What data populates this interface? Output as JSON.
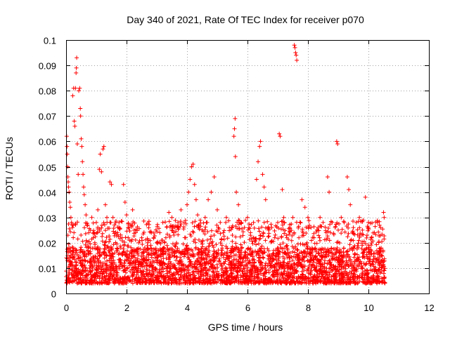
{
  "chart_data": {
    "type": "scatter",
    "title": "Day 340 of 2021, Rate Of TEC Index for receiver p070",
    "xlabel": "GPS time / hours",
    "ylabel": "ROTI / TECUs",
    "xlim": [
      0,
      12
    ],
    "ylim": [
      0,
      0.1
    ],
    "xticks": [
      0,
      2,
      4,
      6,
      8,
      10,
      12
    ],
    "xtick_labels": [
      "0",
      "2",
      "4",
      "6",
      "8",
      "10",
      "12"
    ],
    "yticks": [
      0,
      0.01,
      0.02,
      0.03,
      0.04,
      0.05,
      0.06,
      0.07,
      0.08,
      0.09,
      0.1
    ],
    "ytick_labels": [
      "0",
      "0.01",
      "0.02",
      "0.03",
      "0.04",
      "0.05",
      "0.06",
      "0.07",
      "0.08",
      "0.09",
      "0.1"
    ],
    "grid": true,
    "marker": "+",
    "color": "#ff0000",
    "baseline_band": {
      "x_range": [
        0,
        10.55
      ],
      "y_range": [
        0.004,
        0.018
      ]
    },
    "series": [
      {
        "name": "ROTI",
        "points": [
          [
            0.02,
            0.062
          ],
          [
            0.03,
            0.058
          ],
          [
            0.04,
            0.055
          ],
          [
            0.05,
            0.05
          ],
          [
            0.06,
            0.046
          ],
          [
            0.07,
            0.044
          ],
          [
            0.08,
            0.042
          ],
          [
            0.1,
            0.04
          ],
          [
            0.12,
            0.036
          ],
          [
            0.14,
            0.034
          ],
          [
            0.16,
            0.03
          ],
          [
            0.18,
            0.028
          ],
          [
            0.2,
            0.027
          ],
          [
            0.22,
            0.078
          ],
          [
            0.25,
            0.081
          ],
          [
            0.27,
            0.068
          ],
          [
            0.29,
            0.066
          ],
          [
            0.31,
            0.081
          ],
          [
            0.33,
            0.087
          ],
          [
            0.34,
            0.089
          ],
          [
            0.35,
            0.093
          ],
          [
            0.37,
            0.059
          ],
          [
            0.4,
            0.047
          ],
          [
            0.42,
            0.08
          ],
          [
            0.45,
            0.081
          ],
          [
            0.47,
            0.073
          ],
          [
            0.48,
            0.07
          ],
          [
            0.5,
            0.061
          ],
          [
            0.52,
            0.058
          ],
          [
            0.54,
            0.052
          ],
          [
            0.56,
            0.047
          ],
          [
            0.58,
            0.042
          ],
          [
            0.6,
            0.039
          ],
          [
            0.63,
            0.035
          ],
          [
            0.66,
            0.031
          ],
          [
            0.7,
            0.027
          ],
          [
            0.75,
            0.024
          ],
          [
            0.8,
            0.025
          ],
          [
            0.85,
            0.03
          ],
          [
            0.9,
            0.022
          ],
          [
            0.95,
            0.02
          ],
          [
            1.0,
            0.028
          ],
          [
            1.05,
            0.033
          ],
          [
            1.1,
            0.049
          ],
          [
            1.13,
            0.055
          ],
          [
            1.17,
            0.048
          ],
          [
            1.22,
            0.057
          ],
          [
            1.25,
            0.058
          ],
          [
            1.3,
            0.035
          ],
          [
            1.35,
            0.03
          ],
          [
            1.45,
            0.044
          ],
          [
            1.5,
            0.043
          ],
          [
            1.55,
            0.03
          ],
          [
            1.6,
            0.027
          ],
          [
            1.7,
            0.024
          ],
          [
            1.75,
            0.028
          ],
          [
            1.85,
            0.022
          ],
          [
            1.9,
            0.043
          ],
          [
            1.95,
            0.036
          ],
          [
            2.0,
            0.031
          ],
          [
            2.05,
            0.026
          ],
          [
            2.1,
            0.021
          ],
          [
            2.2,
            0.033
          ],
          [
            2.3,
            0.024
          ],
          [
            2.4,
            0.02
          ],
          [
            2.5,
            0.022
          ],
          [
            2.6,
            0.018
          ],
          [
            2.7,
            0.02
          ],
          [
            2.8,
            0.019
          ],
          [
            2.9,
            0.022
          ],
          [
            3.0,
            0.02
          ],
          [
            3.1,
            0.024
          ],
          [
            3.2,
            0.028
          ],
          [
            3.3,
            0.022
          ],
          [
            3.4,
            0.032
          ],
          [
            3.5,
            0.03
          ],
          [
            3.6,
            0.026
          ],
          [
            3.7,
            0.028
          ],
          [
            3.8,
            0.033
          ],
          [
            3.9,
            0.028
          ],
          [
            4.0,
            0.035
          ],
          [
            4.05,
            0.04
          ],
          [
            4.1,
            0.045
          ],
          [
            4.15,
            0.05
          ],
          [
            4.2,
            0.051
          ],
          [
            4.25,
            0.043
          ],
          [
            4.3,
            0.037
          ],
          [
            4.35,
            0.031
          ],
          [
            4.4,
            0.027
          ],
          [
            4.5,
            0.025
          ],
          [
            4.6,
            0.03
          ],
          [
            4.7,
            0.037
          ],
          [
            4.8,
            0.04
          ],
          [
            4.9,
            0.046
          ],
          [
            5.0,
            0.033
          ],
          [
            5.1,
            0.028
          ],
          [
            5.2,
            0.024
          ],
          [
            5.3,
            0.03
          ],
          [
            5.4,
            0.026
          ],
          [
            5.5,
            0.023
          ],
          [
            5.55,
            0.062
          ],
          [
            5.57,
            0.065
          ],
          [
            5.59,
            0.069
          ],
          [
            5.6,
            0.054
          ],
          [
            5.63,
            0.04
          ],
          [
            5.7,
            0.035
          ],
          [
            5.8,
            0.028
          ],
          [
            5.9,
            0.026
          ],
          [
            6.0,
            0.03
          ],
          [
            6.1,
            0.024
          ],
          [
            6.2,
            0.028
          ],
          [
            6.3,
            0.045
          ],
          [
            6.35,
            0.052
          ],
          [
            6.4,
            0.058
          ],
          [
            6.43,
            0.06
          ],
          [
            6.5,
            0.047
          ],
          [
            6.55,
            0.042
          ],
          [
            6.6,
            0.037
          ],
          [
            6.7,
            0.025
          ],
          [
            6.8,
            0.026
          ],
          [
            6.9,
            0.022
          ],
          [
            7.0,
            0.028
          ],
          [
            7.05,
            0.063
          ],
          [
            7.08,
            0.062
          ],
          [
            7.15,
            0.041
          ],
          [
            7.2,
            0.03
          ],
          [
            7.3,
            0.022
          ],
          [
            7.4,
            0.026
          ],
          [
            7.5,
            0.03
          ],
          [
            7.55,
            0.098
          ],
          [
            7.57,
            0.097
          ],
          [
            7.59,
            0.095
          ],
          [
            7.61,
            0.094
          ],
          [
            7.63,
            0.092
          ],
          [
            7.7,
            0.022
          ],
          [
            7.8,
            0.037
          ],
          [
            7.9,
            0.034
          ],
          [
            8.0,
            0.03
          ],
          [
            8.1,
            0.026
          ],
          [
            8.2,
            0.022
          ],
          [
            8.3,
            0.025
          ],
          [
            8.4,
            0.03
          ],
          [
            8.5,
            0.028
          ],
          [
            8.6,
            0.024
          ],
          [
            8.65,
            0.046
          ],
          [
            8.7,
            0.04
          ],
          [
            8.8,
            0.028
          ],
          [
            8.9,
            0.026
          ],
          [
            8.95,
            0.06
          ],
          [
            8.98,
            0.059
          ],
          [
            9.0,
            0.025
          ],
          [
            9.1,
            0.03
          ],
          [
            9.2,
            0.028
          ],
          [
            9.3,
            0.046
          ],
          [
            9.35,
            0.041
          ],
          [
            9.4,
            0.035
          ],
          [
            9.5,
            0.026
          ],
          [
            9.6,
            0.028
          ],
          [
            9.7,
            0.03
          ],
          [
            9.8,
            0.025
          ],
          [
            9.9,
            0.038
          ],
          [
            10.0,
            0.028
          ],
          [
            10.1,
            0.022
          ],
          [
            10.2,
            0.024
          ],
          [
            10.3,
            0.028
          ],
          [
            10.4,
            0.026
          ],
          [
            10.5,
            0.032
          ],
          [
            10.52,
            0.03
          ]
        ]
      }
    ]
  }
}
